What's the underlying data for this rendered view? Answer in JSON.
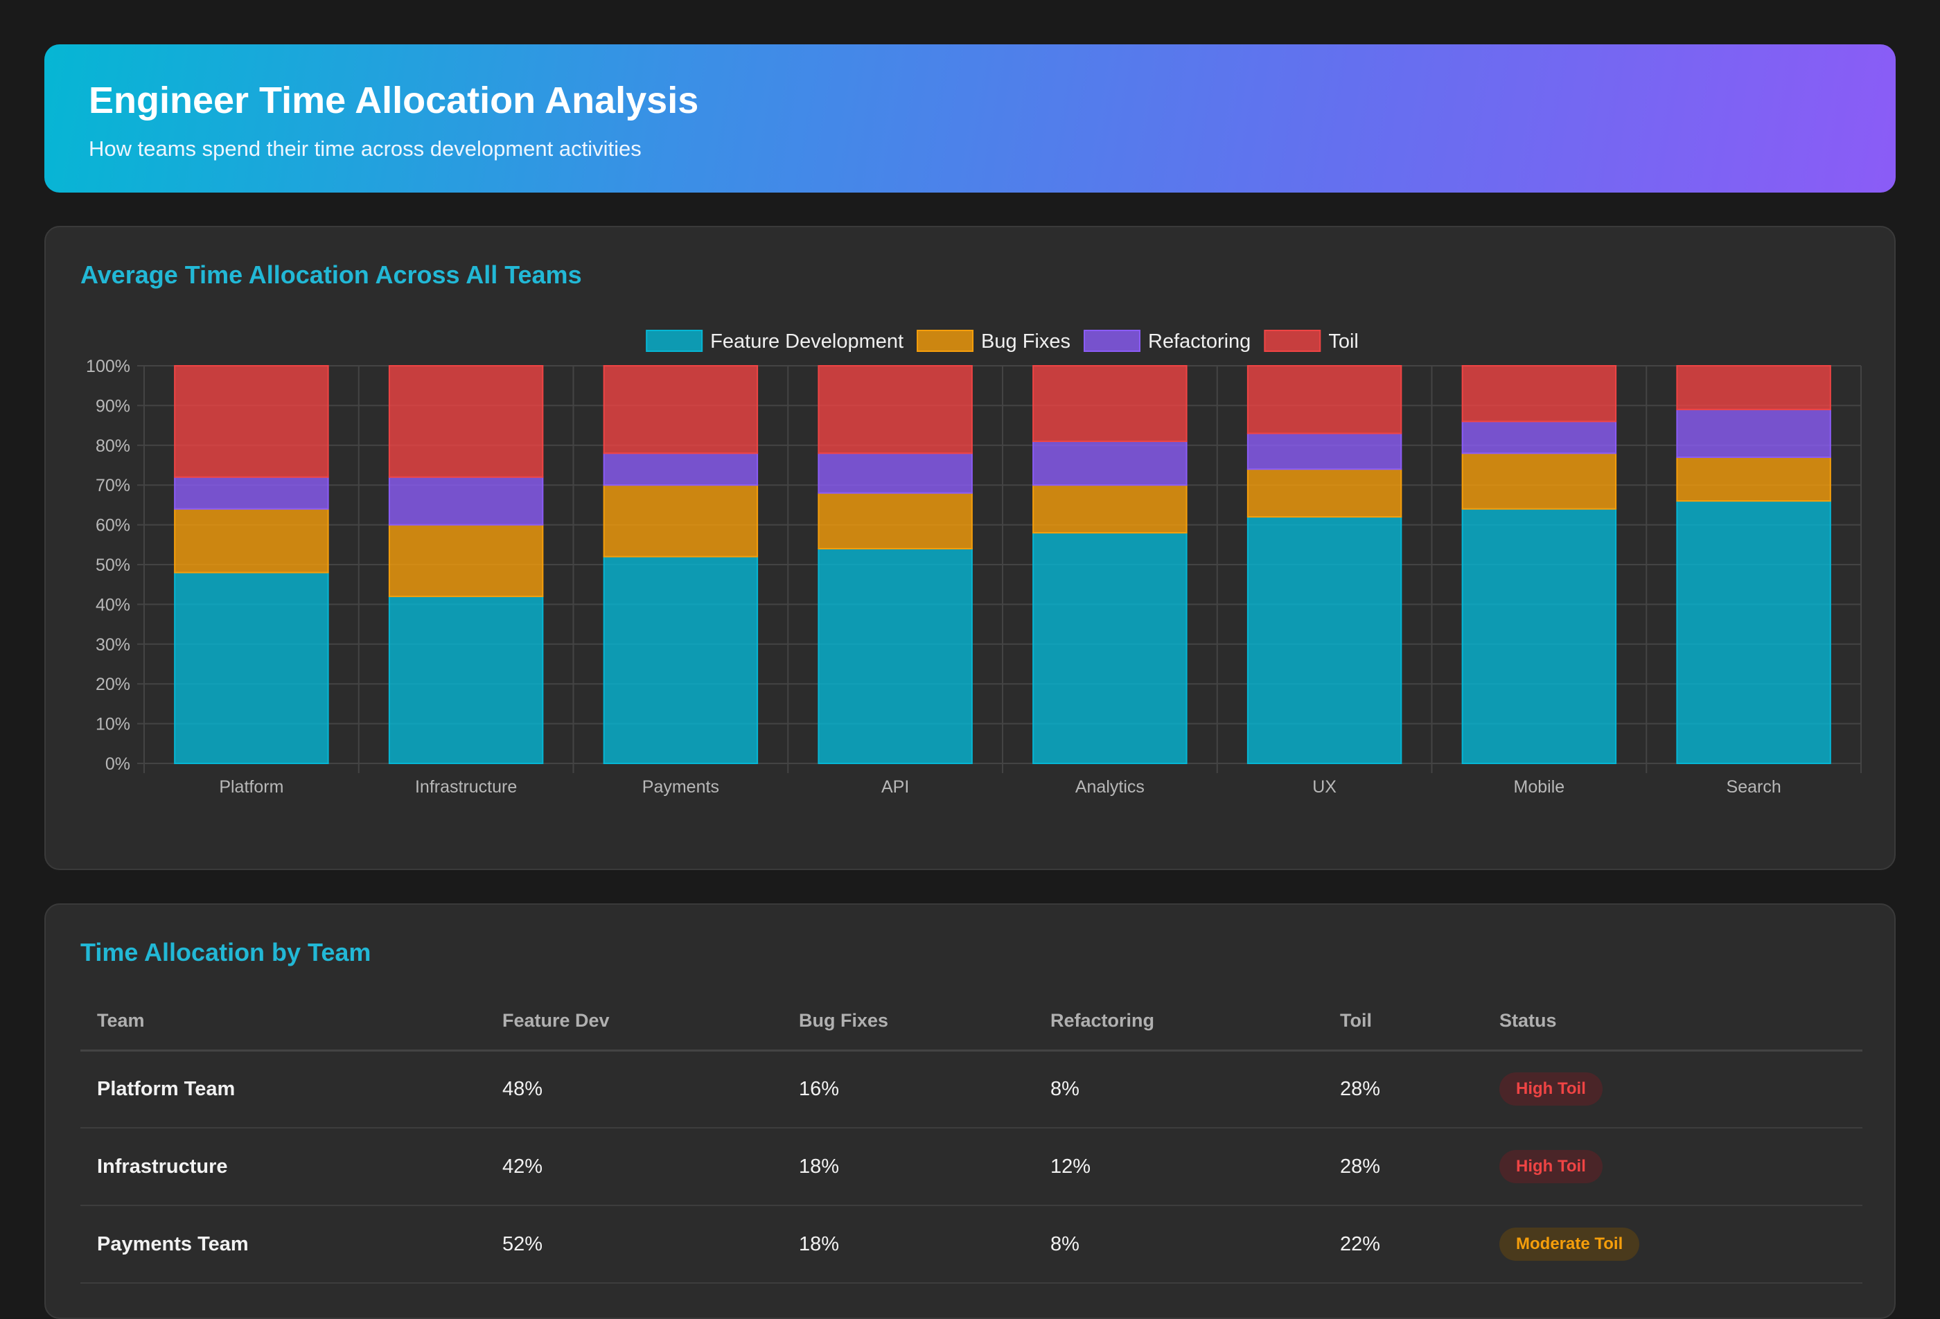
{
  "header": {
    "title": "Engineer Time Allocation Analysis",
    "subtitle": "How teams spend their time across development activities"
  },
  "chart_section": {
    "title": "Average Time Allocation Across All Teams"
  },
  "chart_data": {
    "type": "bar",
    "stacked": true,
    "categories": [
      "Platform",
      "Infrastructure",
      "Payments",
      "API",
      "Analytics",
      "UX",
      "Mobile",
      "Search"
    ],
    "series": [
      {
        "name": "Feature Development",
        "color": "#06b6d4",
        "values": [
          48,
          42,
          52,
          54,
          58,
          62,
          64,
          66
        ]
      },
      {
        "name": "Bug Fixes",
        "color": "#f59e0b",
        "values": [
          16,
          18,
          18,
          14,
          12,
          12,
          14,
          11
        ]
      },
      {
        "name": "Refactoring",
        "color": "#8b5cf6",
        "values": [
          8,
          12,
          8,
          10,
          11,
          9,
          8,
          12
        ]
      },
      {
        "name": "Toil",
        "color": "#ef4444",
        "values": [
          28,
          28,
          22,
          22,
          19,
          17,
          14,
          11
        ]
      }
    ],
    "ylim": [
      0,
      100
    ],
    "yticks": [
      "0%",
      "10%",
      "20%",
      "30%",
      "40%",
      "50%",
      "60%",
      "70%",
      "80%",
      "90%",
      "100%"
    ],
    "grid": true,
    "legend": "top-center",
    "xlabel": "",
    "ylabel": ""
  },
  "table_section": {
    "title": "Time Allocation by Team",
    "columns": [
      "Team",
      "Feature Dev",
      "Bug Fixes",
      "Refactoring",
      "Toil",
      "Status"
    ],
    "rows": [
      {
        "team": "Platform Team",
        "feature": "48%",
        "bugs": "16%",
        "refactor": "8%",
        "toil": "28%",
        "status": "High Toil",
        "level": "high"
      },
      {
        "team": "Infrastructure",
        "feature": "42%",
        "bugs": "18%",
        "refactor": "12%",
        "toil": "28%",
        "status": "High Toil",
        "level": "high"
      },
      {
        "team": "Payments Team",
        "feature": "52%",
        "bugs": "18%",
        "refactor": "8%",
        "toil": "22%",
        "status": "Moderate Toil",
        "level": "moderate"
      }
    ]
  }
}
